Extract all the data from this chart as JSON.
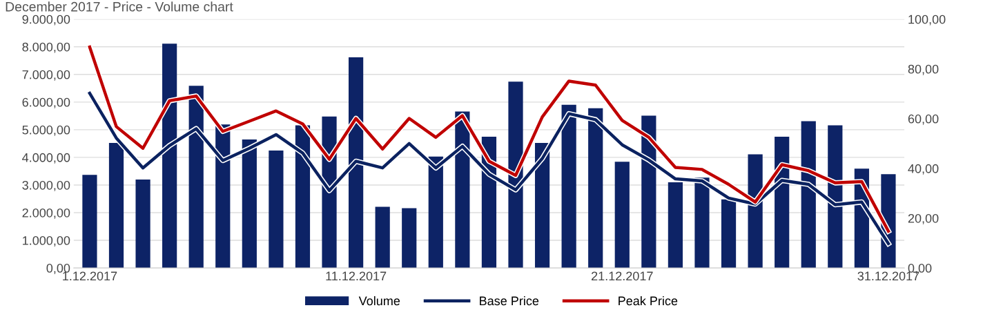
{
  "chart_data": {
    "type": "bar",
    "title": "December 2017 - Price - Volume chart",
    "categories": [
      "1.12.2017",
      null,
      null,
      null,
      null,
      null,
      null,
      null,
      null,
      null,
      "11.12.2017",
      null,
      null,
      null,
      null,
      null,
      null,
      null,
      null,
      null,
      "21.12.2017",
      null,
      null,
      null,
      null,
      null,
      null,
      null,
      null,
      null,
      "31.12.2017"
    ],
    "series": [
      {
        "name": "Volume",
        "color": "#0d2366",
        "values": [
          3370,
          4520,
          3200,
          8110,
          6590,
          5190,
          4650,
          4250,
          5160,
          5480,
          7620,
          2210,
          2160,
          4030,
          5660,
          4750,
          6740,
          4520,
          5900,
          5780,
          3840,
          5510,
          3100,
          3270,
          2480,
          4110,
          4750,
          5310,
          5160,
          3590,
          3390
        ]
      },
      {
        "name": "Base Price",
        "type": "line",
        "axis": "y2",
        "color": "#0b2260",
        "values": [
          70.2,
          52.2,
          40.2,
          49.2,
          56.0,
          43.2,
          48.1,
          53.6,
          46.2,
          31.1,
          42.9,
          40.2,
          50.0,
          40.2,
          48.9,
          37.7,
          31.4,
          44.0,
          62.0,
          59.6,
          49.5,
          43.4,
          35.8,
          35.0,
          28.1,
          25.7,
          35.2,
          33.6,
          25.4,
          26.5,
          9.8
        ]
      },
      {
        "name": "Peak Price",
        "type": "line",
        "axis": "y2",
        "color": "#c00000",
        "values": [
          88.8,
          56.8,
          48.1,
          67.2,
          69.1,
          54.9,
          59.0,
          63.1,
          57.9,
          43.7,
          60.1,
          47.8,
          60.1,
          52.5,
          61.2,
          42.9,
          37.2,
          60.7,
          75.1,
          73.5,
          59.3,
          52.5,
          40.4,
          39.6,
          33.6,
          26.5,
          41.5,
          39.1,
          34.2,
          34.7,
          14.8
        ]
      }
    ],
    "ylim": [
      0,
      9000
    ],
    "yticks": [
      {
        "value": 0,
        "label": "0,00"
      },
      {
        "value": 1000,
        "label": "1.000,00"
      },
      {
        "value": 2000,
        "label": "2.000,00"
      },
      {
        "value": 3000,
        "label": "3.000,00"
      },
      {
        "value": 4000,
        "label": "4.000,00"
      },
      {
        "value": 5000,
        "label": "5.000,00"
      },
      {
        "value": 6000,
        "label": "6.000,00"
      },
      {
        "value": 7000,
        "label": "7.000,00"
      },
      {
        "value": 8000,
        "label": "8.000,00"
      },
      {
        "value": 9000,
        "label": "9.000,00"
      }
    ],
    "y2lim": [
      0,
      100
    ],
    "y2ticks": [
      {
        "value": 0,
        "label": "0,00"
      },
      {
        "value": 20,
        "label": "20,00"
      },
      {
        "value": 40,
        "label": "40,00"
      },
      {
        "value": 60,
        "label": "60,00"
      },
      {
        "value": 80,
        "label": "80,00"
      },
      {
        "value": 100,
        "label": "100,00"
      }
    ],
    "grid": "y",
    "legend": "bottom",
    "marker": "none",
    "line_style": "solid"
  }
}
